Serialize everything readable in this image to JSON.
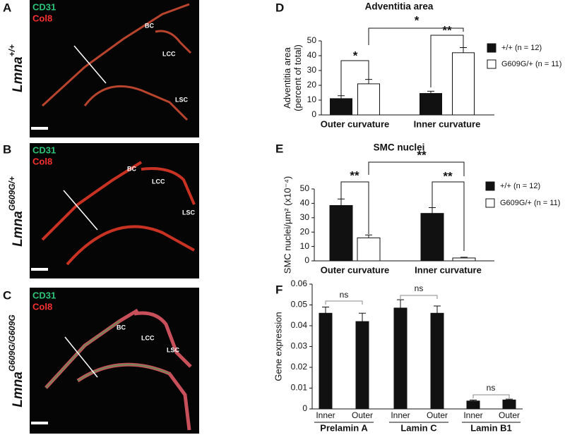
{
  "image_panels": [
    {
      "letter": "A",
      "stains": [
        "CD31",
        "Col8"
      ],
      "vessels": [
        "BC",
        "LCC",
        "LSC"
      ],
      "genotype": "Lmna",
      "genotype_sup": "+/+"
    },
    {
      "letter": "B",
      "stains": [
        "CD31",
        "Col8"
      ],
      "vessels": [
        "BC",
        "LCC",
        "LSC"
      ],
      "genotype": "Lmna",
      "genotype_sup": "G609G/+"
    },
    {
      "letter": "C",
      "stains": [
        "CD31",
        "Col8"
      ],
      "vessels": [
        "BC",
        "LCC",
        "LSC"
      ],
      "genotype": "Lmna",
      "genotype_sup": "G609G/G609G"
    }
  ],
  "chart_data": [
    {
      "type": "bar",
      "letter": "D",
      "title": "Adventitia area",
      "y_label": [
        "Adventitia area",
        "(percent of total)"
      ],
      "categories": [
        "Outer curvature",
        "Inner curvature"
      ],
      "series": [
        {
          "name": "+/+ (n = 12)",
          "color": "#111111",
          "values": [
            11,
            14.5
          ],
          "errors": [
            2,
            1.5
          ]
        },
        {
          "name": "G609G/+ (n = 11)",
          "color": "#ffffff",
          "values": [
            21,
            42
          ],
          "errors": [
            3,
            3.5
          ]
        }
      ],
      "ylim": [
        0,
        50
      ],
      "yticks": [
        0,
        10,
        20,
        30,
        40,
        50
      ],
      "annotations": [
        "*",
        "**",
        "*"
      ]
    },
    {
      "type": "bar",
      "letter": "E",
      "title": "SMC nuclei",
      "y_label": [
        "SMC nuclei/µm² (x10⁻⁴)"
      ],
      "categories": [
        "Outer curvature",
        "Inner curvature"
      ],
      "series": [
        {
          "name": "+/+ (n = 12)",
          "color": "#111111",
          "values": [
            38.5,
            33
          ],
          "errors": [
            4.5,
            4
          ]
        },
        {
          "name": "G609G/+ (n = 11)",
          "color": "#ffffff",
          "values": [
            16,
            2
          ],
          "errors": [
            2,
            0.5
          ]
        }
      ],
      "ylim": [
        0,
        50
      ],
      "yticks": [
        0,
        10,
        20,
        30,
        40,
        50
      ],
      "annotations": [
        "**",
        "**",
        "**"
      ]
    },
    {
      "type": "bar",
      "letter": "F",
      "y_label": [
        "Gene expression"
      ],
      "categories": [
        "Inner",
        "Outer",
        "Inner",
        "Outer",
        "Inner",
        "Outer"
      ],
      "groups": [
        "Prelamin A",
        "Lamin C",
        "Lamin B1"
      ],
      "series": [
        {
          "color": "#111111",
          "values": [
            0.046,
            0.042,
            0.0485,
            0.046,
            0.0038,
            0.0043
          ],
          "errors": [
            0.003,
            0.004,
            0.004,
            0.0035,
            0.0005,
            0.0004
          ]
        }
      ],
      "ylim": [
        0,
        0.06
      ],
      "yticks": [
        0,
        0.01,
        0.02,
        0.03,
        0.04,
        0.05,
        0.06
      ],
      "annotations": [
        "ns",
        "ns",
        "ns"
      ]
    }
  ]
}
